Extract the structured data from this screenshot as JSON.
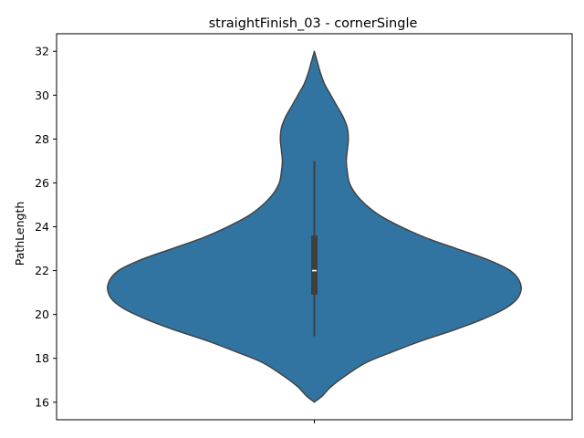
{
  "chart_data": {
    "type": "violin",
    "title": "straightFinish_03 - cornerSingle",
    "xlabel": "",
    "ylabel": "PathLength",
    "ylim": [
      15.2,
      32.8
    ],
    "yticks": [
      16,
      18,
      20,
      22,
      24,
      26,
      28,
      30,
      32
    ],
    "grid": false,
    "violin_color": "#3274a1",
    "density_profile": [
      {
        "y": 16.0,
        "w": 0.0
      },
      {
        "y": 16.3,
        "w": 0.04
      },
      {
        "y": 16.7,
        "w": 0.08
      },
      {
        "y": 17.2,
        "w": 0.15
      },
      {
        "y": 17.8,
        "w": 0.25
      },
      {
        "y": 18.3,
        "w": 0.38
      },
      {
        "y": 18.8,
        "w": 0.52
      },
      {
        "y": 19.3,
        "w": 0.68
      },
      {
        "y": 19.8,
        "w": 0.82
      },
      {
        "y": 20.3,
        "w": 0.93
      },
      {
        "y": 20.8,
        "w": 0.99
      },
      {
        "y": 21.4,
        "w": 1.0
      },
      {
        "y": 22.0,
        "w": 0.95
      },
      {
        "y": 22.5,
        "w": 0.84
      },
      {
        "y": 23.0,
        "w": 0.69
      },
      {
        "y": 23.5,
        "w": 0.54
      },
      {
        "y": 24.0,
        "w": 0.42
      },
      {
        "y": 24.5,
        "w": 0.32
      },
      {
        "y": 25.0,
        "w": 0.25
      },
      {
        "y": 25.5,
        "w": 0.2
      },
      {
        "y": 26.0,
        "w": 0.17
      },
      {
        "y": 26.5,
        "w": 0.16
      },
      {
        "y": 27.0,
        "w": 0.155
      },
      {
        "y": 27.5,
        "w": 0.16
      },
      {
        "y": 28.0,
        "w": 0.165
      },
      {
        "y": 28.5,
        "w": 0.16
      },
      {
        "y": 29.0,
        "w": 0.14
      },
      {
        "y": 29.5,
        "w": 0.11
      },
      {
        "y": 30.0,
        "w": 0.08
      },
      {
        "y": 30.5,
        "w": 0.05
      },
      {
        "y": 31.0,
        "w": 0.03
      },
      {
        "y": 31.5,
        "w": 0.015
      },
      {
        "y": 32.0,
        "w": 0.0
      }
    ],
    "box": {
      "whisker_low": 19.0,
      "q1": 20.9,
      "median": 22.0,
      "q3": 23.6,
      "whisker_high": 27.0
    }
  }
}
